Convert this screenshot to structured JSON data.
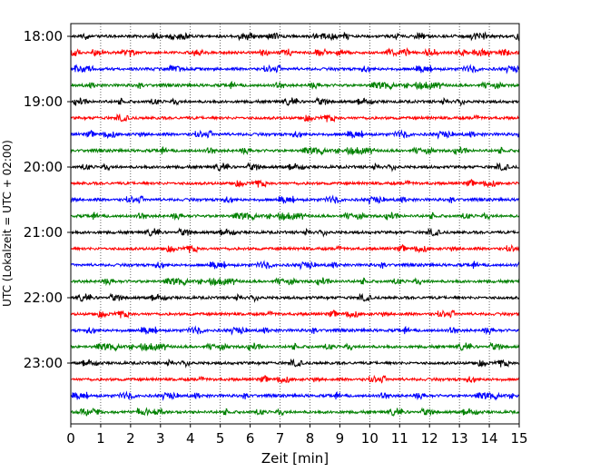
{
  "chart_data": {
    "type": "line",
    "title": "",
    "xlabel": "Zeit  [min]",
    "ylabel": "UTC (Lokalzeit = UTC + 02:00)",
    "xlim": [
      0,
      15
    ],
    "x_ticks": [
      0,
      1,
      2,
      3,
      4,
      5,
      6,
      7,
      8,
      9,
      10,
      11,
      12,
      13,
      14,
      15
    ],
    "y_tick_labels": [
      "18:00",
      "19:00",
      "20:00",
      "21:00",
      "22:00",
      "23:00"
    ],
    "grid": {
      "x": true,
      "y": false,
      "style": "dotted"
    },
    "trace_colors": [
      "#000000",
      "#ff0000",
      "#0000ff",
      "#008000"
    ],
    "traces_per_hour": 4,
    "trace_minutes": 15,
    "series": [
      {
        "start": "18:00",
        "color": "#000000"
      },
      {
        "start": "18:15",
        "color": "#ff0000"
      },
      {
        "start": "18:30",
        "color": "#0000ff"
      },
      {
        "start": "18:45",
        "color": "#008000"
      },
      {
        "start": "19:00",
        "color": "#000000"
      },
      {
        "start": "19:15",
        "color": "#ff0000"
      },
      {
        "start": "19:30",
        "color": "#0000ff"
      },
      {
        "start": "19:45",
        "color": "#008000"
      },
      {
        "start": "20:00",
        "color": "#000000"
      },
      {
        "start": "20:15",
        "color": "#ff0000"
      },
      {
        "start": "20:30",
        "color": "#0000ff"
      },
      {
        "start": "20:45",
        "color": "#008000"
      },
      {
        "start": "21:00",
        "color": "#000000"
      },
      {
        "start": "21:15",
        "color": "#ff0000"
      },
      {
        "start": "21:30",
        "color": "#0000ff"
      },
      {
        "start": "21:45",
        "color": "#008000"
      },
      {
        "start": "22:00",
        "color": "#000000"
      },
      {
        "start": "22:15",
        "color": "#ff0000"
      },
      {
        "start": "22:30",
        "color": "#0000ff"
      },
      {
        "start": "22:45",
        "color": "#008000"
      },
      {
        "start": "23:00",
        "color": "#000000"
      },
      {
        "start": "23:15",
        "color": "#ff0000"
      },
      {
        "start": "23:30",
        "color": "#0000ff"
      },
      {
        "start": "23:45",
        "color": "#008000"
      }
    ]
  }
}
